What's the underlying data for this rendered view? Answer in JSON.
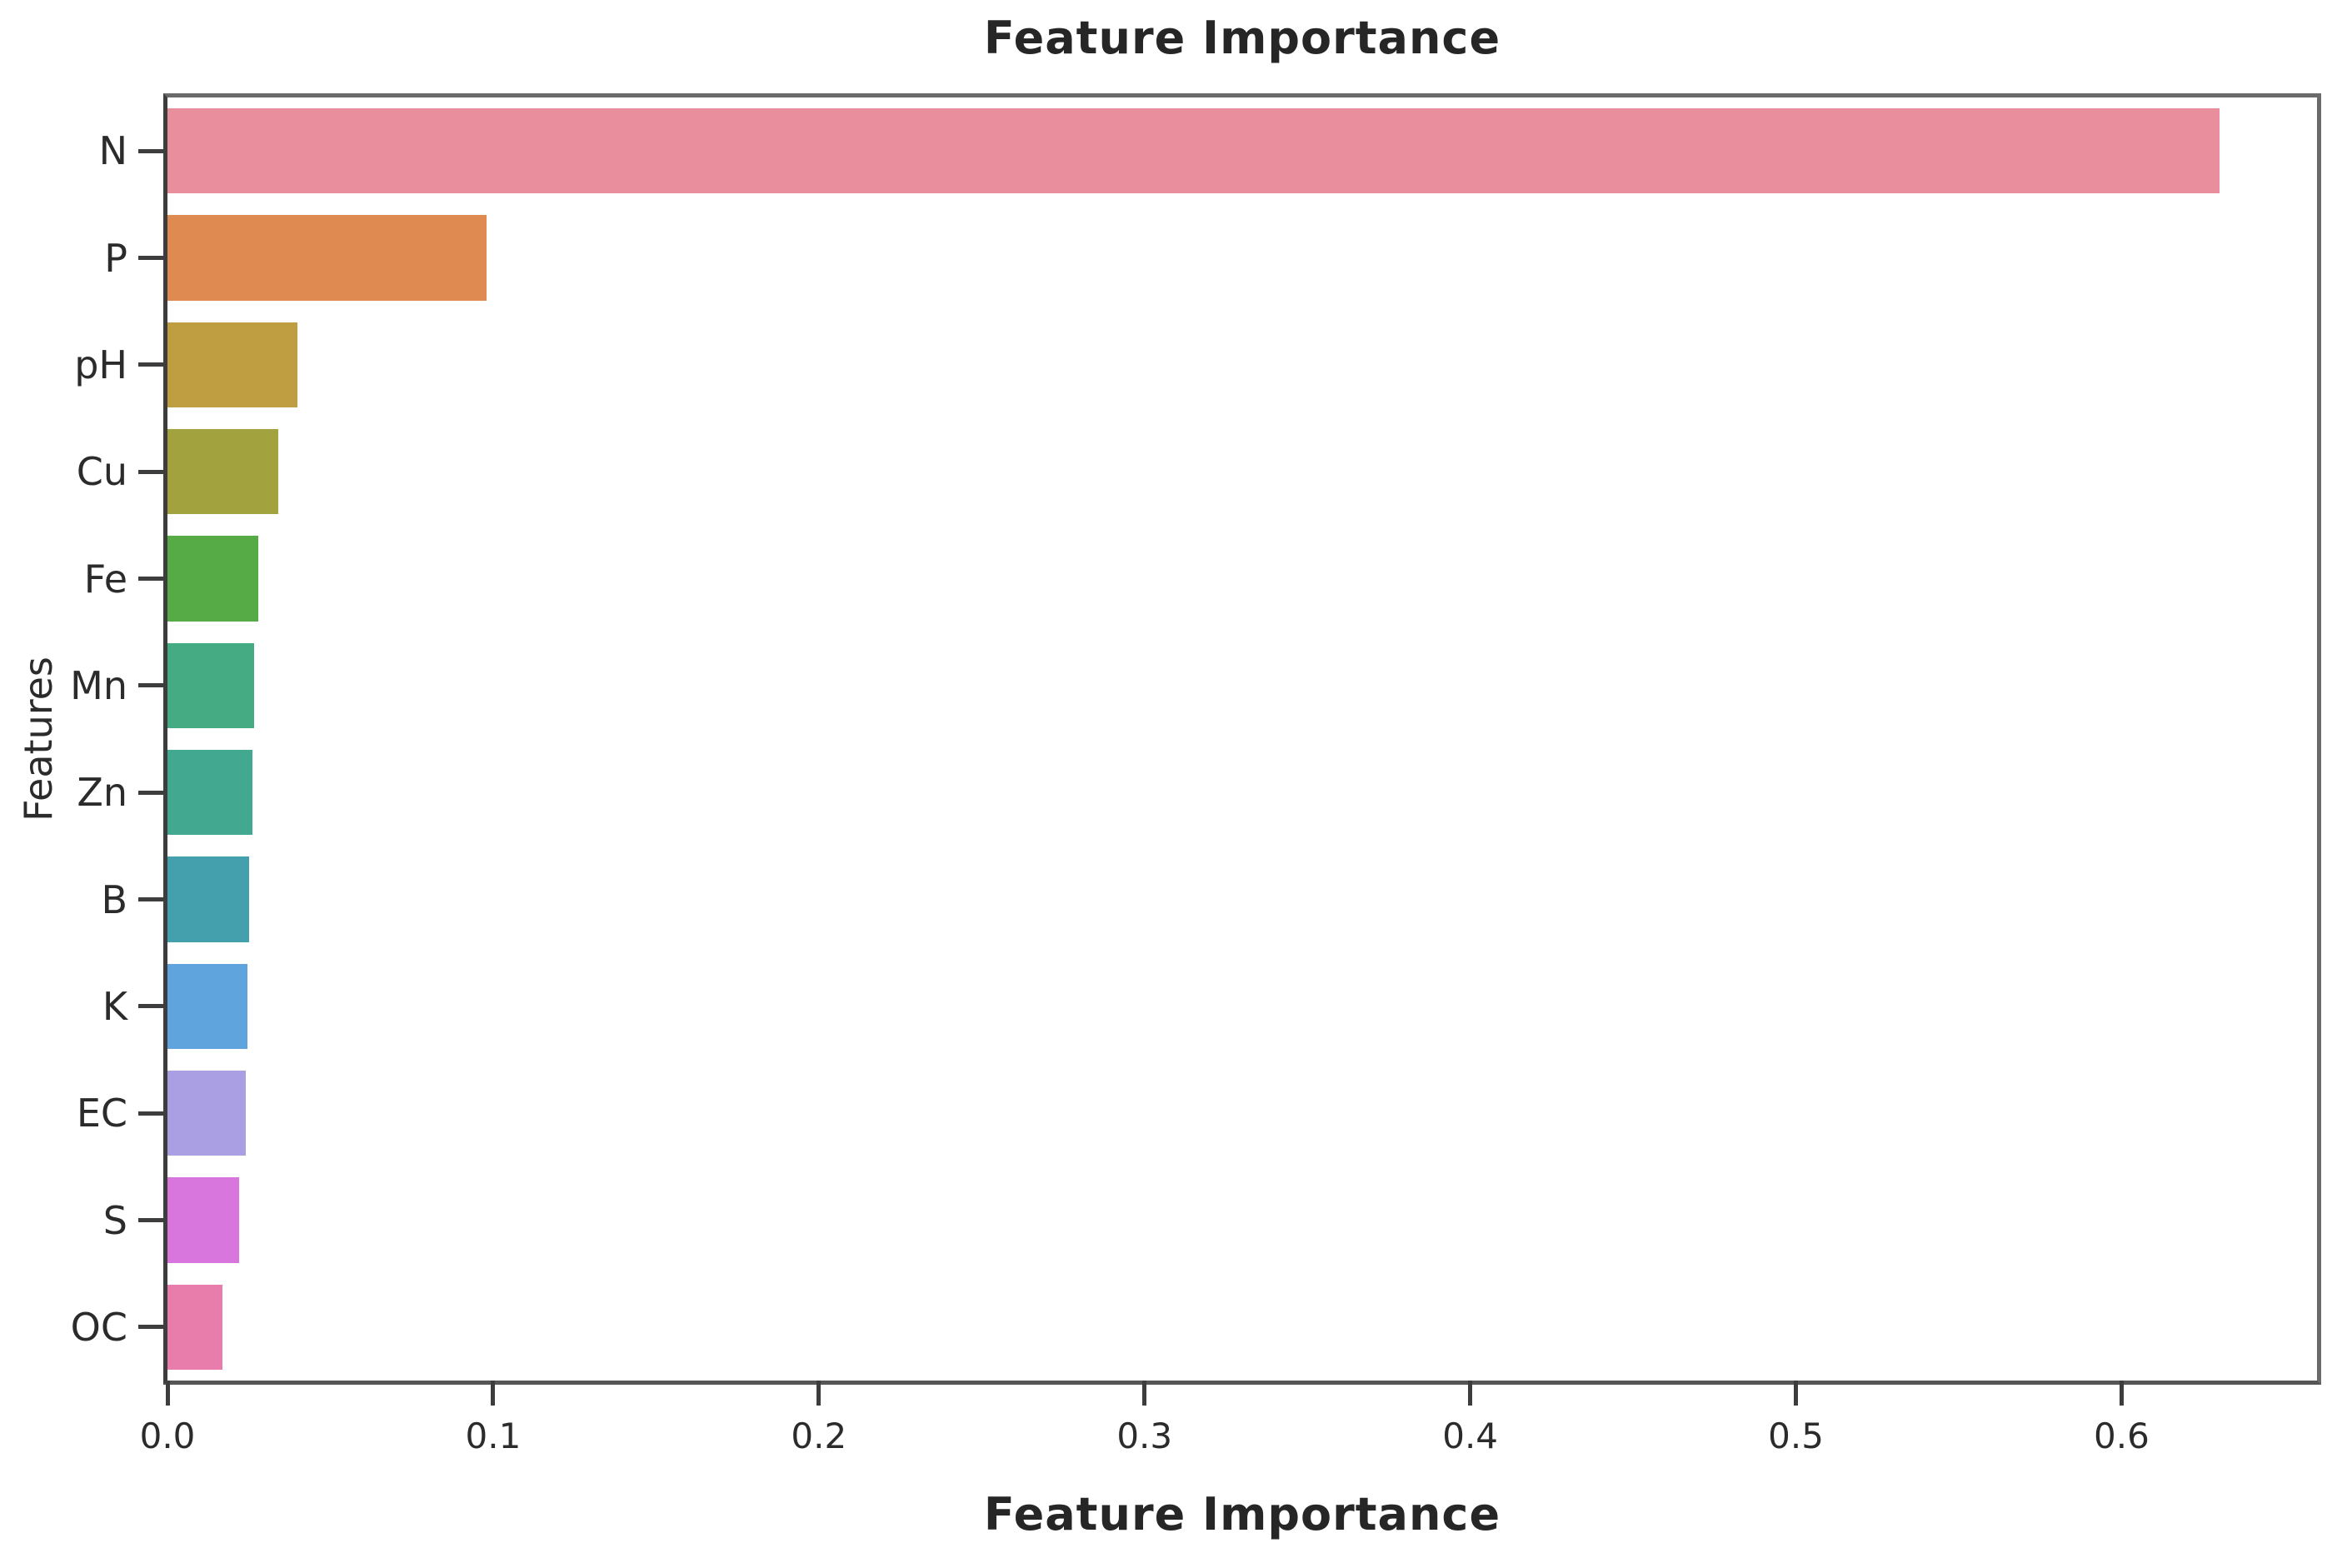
{
  "chart_data": {
    "type": "bar",
    "orientation": "horizontal",
    "title": "Feature Importance",
    "xlabel": "Feature Importance",
    "ylabel": "Features",
    "categories": [
      "N",
      "P",
      "pH",
      "Cu",
      "Fe",
      "Mn",
      "Zn",
      "B",
      "K",
      "EC",
      "S",
      "OC"
    ],
    "values": [
      0.63,
      0.098,
      0.04,
      0.034,
      0.028,
      0.0265,
      0.026,
      0.025,
      0.0245,
      0.024,
      0.022,
      0.017
    ],
    "bar_colors": [
      "#e88e9d",
      "#de8a50",
      "#bf9e42",
      "#a2a23f",
      "#56ab46",
      "#45ab82",
      "#43a890",
      "#44a0ad",
      "#5fa4dd",
      "#ab9fe3",
      "#d876dd",
      "#e87cab"
    ],
    "xticks": [
      0.0,
      0.1,
      0.2,
      0.3,
      0.4,
      0.5,
      0.6
    ],
    "xtick_labels": [
      "0.0",
      "0.1",
      "0.2",
      "0.3",
      "0.4",
      "0.5",
      "0.6"
    ],
    "xlim": [
      0,
      0.66
    ],
    "grid": false,
    "legend": null
  },
  "colors": {
    "background": "#ffffff",
    "spine": "#6a6a6a",
    "tick": "#3d3d3d",
    "title_text": "#262626",
    "tick_text": "#2b2b2b"
  }
}
